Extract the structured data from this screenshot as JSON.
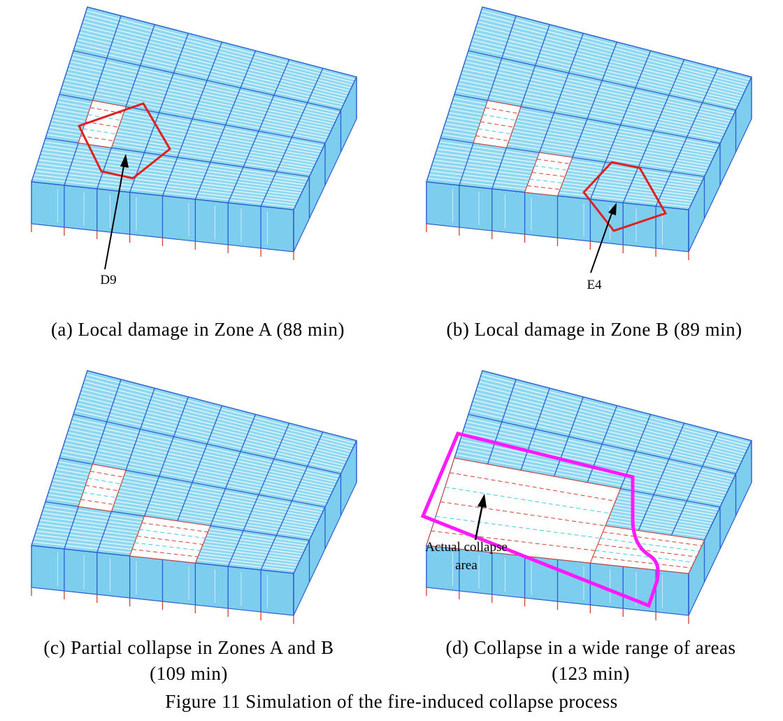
{
  "panels": [
    {
      "annotation": [
        "D9"
      ],
      "caption": [
        "(a) Local damage in Zone A (88 min)"
      ]
    },
    {
      "annotation": [
        "E4"
      ],
      "caption": [
        "(b) Local damage in Zone B (89 min)"
      ]
    },
    {
      "caption": [
        "(c) Partial collapse in Zones A and B",
        "(109 min)"
      ]
    },
    {
      "annotation": [
        "Actual collapse",
        "area"
      ],
      "caption": [
        "(d) Collapse in a wide range of areas",
        "(123 min)"
      ]
    }
  ],
  "figure_caption": "Figure 11 Simulation of the fire-induced collapse process"
}
